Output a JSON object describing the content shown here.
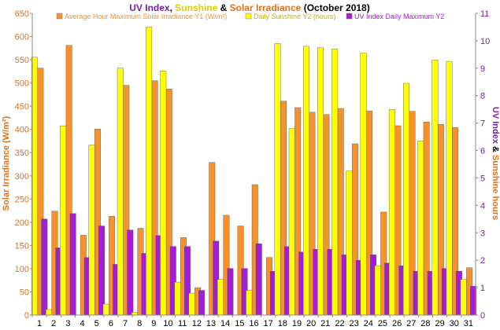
{
  "chart_data": {
    "type": "bar",
    "title_parts": [
      {
        "text": "UV Index",
        "color": "#7b1fa2"
      },
      {
        "text": ", ",
        "color": "#000000"
      },
      {
        "text": "Sunshine",
        "color": "#e6c800"
      },
      {
        "text": " & ",
        "color": "#000000"
      },
      {
        "text": "Solar Irradiance",
        "color": "#e0701c"
      },
      {
        "text": " (October 2018)",
        "color": "#000000"
      }
    ],
    "categories": [
      "1",
      "2",
      "3",
      "4",
      "5",
      "6",
      "7",
      "8",
      "9",
      "10",
      "11",
      "12",
      "13",
      "14",
      "15",
      "16",
      "17",
      "18",
      "19",
      "20",
      "21",
      "22",
      "23",
      "24",
      "25",
      "26",
      "27",
      "28",
      "29",
      "30",
      "31"
    ],
    "y1": {
      "label": "Solar Irradiance (W/m²)",
      "ticks": [
        "0",
        "50",
        "100",
        "150",
        "200",
        "250",
        "300",
        "350",
        "400",
        "450",
        "500",
        "550",
        "600",
        "650"
      ],
      "range": [
        0,
        650
      ]
    },
    "y2": {
      "label_parts": [
        {
          "text": "UV Index",
          "color": "#7b1fa2"
        },
        {
          "text": " & ",
          "color": "#000000"
        },
        {
          "text": "Sunshine hours",
          "color": "#e0701c"
        }
      ],
      "ticks": [
        "0",
        "1",
        "2",
        "3",
        "4",
        "5",
        "6",
        "7",
        "8",
        "9",
        "10",
        "11"
      ],
      "range": [
        0,
        11
      ]
    },
    "series": [
      {
        "name": "Average Hour Maximum Solar Irradiance Y1 (W/m²)",
        "axis": "y1",
        "color": "#f5922f",
        "values": [
          532,
          224,
          581,
          172,
          401,
          213,
          495,
          187,
          505,
          487,
          167,
          59,
          329,
          215,
          192,
          281,
          124,
          461,
          447,
          437,
          432,
          445,
          369,
          440,
          222,
          408,
          439,
          416,
          411,
          404,
          102
        ]
      },
      {
        "name": "Daily Sunshine Y2 (hours)",
        "axis": "y2",
        "color": "#ffff00",
        "values": [
          9.4,
          0.2,
          6.9,
          0.0,
          6.2,
          0.4,
          9.0,
          0.1,
          10.5,
          8.9,
          1.2,
          0.8,
          0.0,
          1.3,
          0.0,
          0.9,
          0.0,
          9.9,
          6.8,
          9.8,
          9.75,
          9.7,
          5.25,
          9.55,
          1.8,
          7.5,
          8.45,
          6.35,
          9.3,
          9.25,
          1.3
        ]
      },
      {
        "name": "UV Index Daily Maximum Y2",
        "axis": "y2",
        "color": "#a31cd6",
        "values": [
          3.5,
          2.45,
          3.7,
          2.1,
          3.25,
          1.85,
          3.1,
          2.25,
          2.9,
          2.5,
          2.5,
          0.9,
          2.7,
          1.7,
          1.7,
          2.6,
          1.6,
          2.5,
          2.3,
          2.4,
          2.4,
          2.2,
          2.0,
          2.2,
          1.9,
          1.8,
          1.6,
          1.6,
          1.7,
          1.6,
          1.05
        ]
      }
    ],
    "legend_position": "top",
    "grid": false
  }
}
